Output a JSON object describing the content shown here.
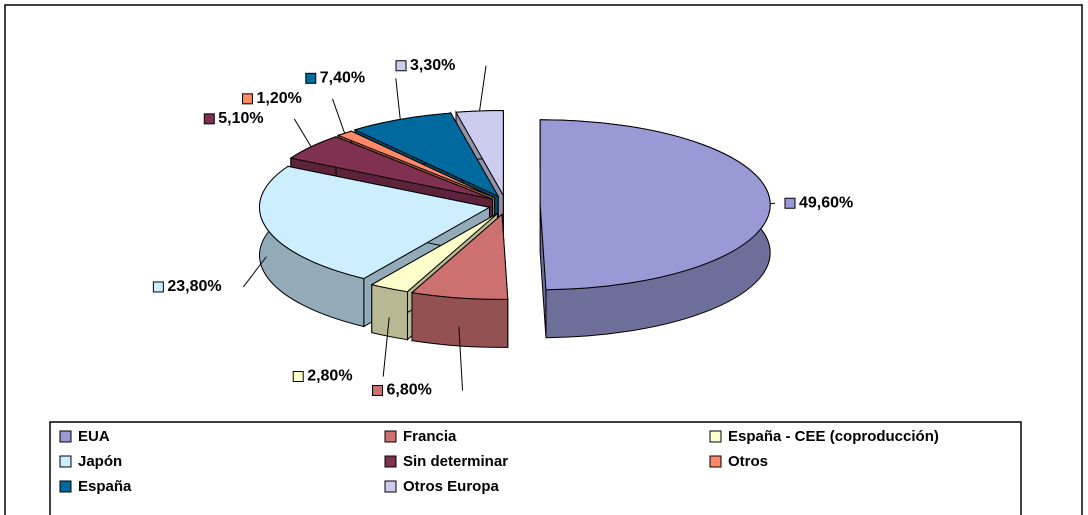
{
  "chart_data": {
    "type": "pie",
    "categories": [
      "EUA",
      "Francia",
      "España - CEE (coproducción)",
      "Japón",
      "Sin determinar",
      "Otros",
      "España",
      "Otros Europa"
    ],
    "values": [
      49.6,
      6.8,
      2.8,
      23.8,
      5.1,
      1.2,
      7.4,
      3.3
    ],
    "value_labels": [
      "49,60%",
      "6,80%",
      "2,80%",
      "23,80%",
      "5,10%",
      "1,20%",
      "7,40%",
      "3,30%"
    ],
    "colors": [
      "#9999d6",
      "#cc7070",
      "#ffffcc",
      "#cceeff",
      "#803050",
      "#ff8866",
      "#006a9e",
      "#ccccee"
    ],
    "legend": "bottom"
  }
}
